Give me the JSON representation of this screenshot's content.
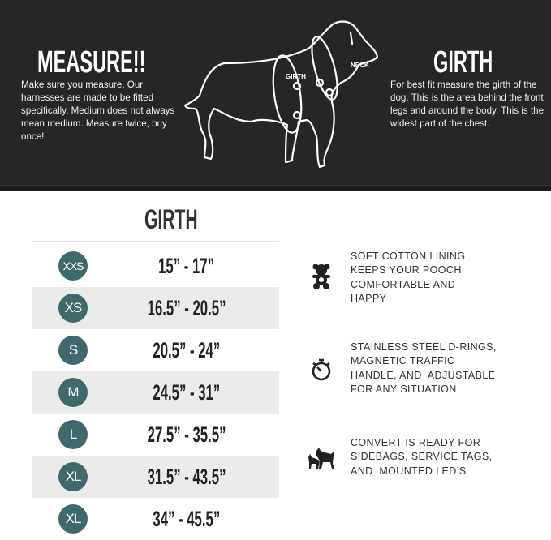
{
  "banner": {
    "left_title": "MEASURE!!",
    "left_text": "Make sure you measure. Our harnesses are made to be fitted specifically. Medium does not always mean medium. Measure twice, buy once!",
    "right_title": "GIRTH",
    "right_text": "For best fit measure the girth of the dog. This is the area behind the front legs and around the body. This is the widest part of the chest.",
    "diagram_labels": {
      "girth": "GIRTH",
      "neck": "NECK"
    }
  },
  "size_table": {
    "header": "GIRTH",
    "rows": [
      {
        "size": "XXS",
        "girth": "15” - 17”"
      },
      {
        "size": "XS",
        "girth": "16.5” - 20.5”"
      },
      {
        "size": "S",
        "girth": "20.5” - 24”"
      },
      {
        "size": "M",
        "girth": "24.5” - 31”"
      },
      {
        "size": "L",
        "girth": "27.5” - 35.5”"
      },
      {
        "size": "XL",
        "girth": "31.5” - 43.5”"
      },
      {
        "size": "XL",
        "girth": "34” - 45.5”"
      }
    ]
  },
  "features": [
    {
      "icon": "teddy-bear-icon",
      "lines": [
        "SOFT COTTON LINING",
        "KEEPS YOUR POOCH",
        "COMFORTABLE AND",
        "HAPPY"
      ]
    },
    {
      "icon": "stopwatch-icon",
      "lines": [
        "STAINLESS STEEL D-RINGS,",
        "MAGNETIC TRAFFIC",
        "HANDLE, AND  ADJUSTABLE",
        "FOR ANY SITUATION"
      ]
    },
    {
      "icon": "two-dogs-icon",
      "lines": [
        "CONVERT IS READY FOR",
        "SIDEBAGS, SERVICE TAGS,",
        "AND  MOUNTED LED’S"
      ]
    }
  ],
  "colors": {
    "banner": "#262626",
    "badge": "#3e6a6d",
    "row_alt": "#ebebeb"
  }
}
